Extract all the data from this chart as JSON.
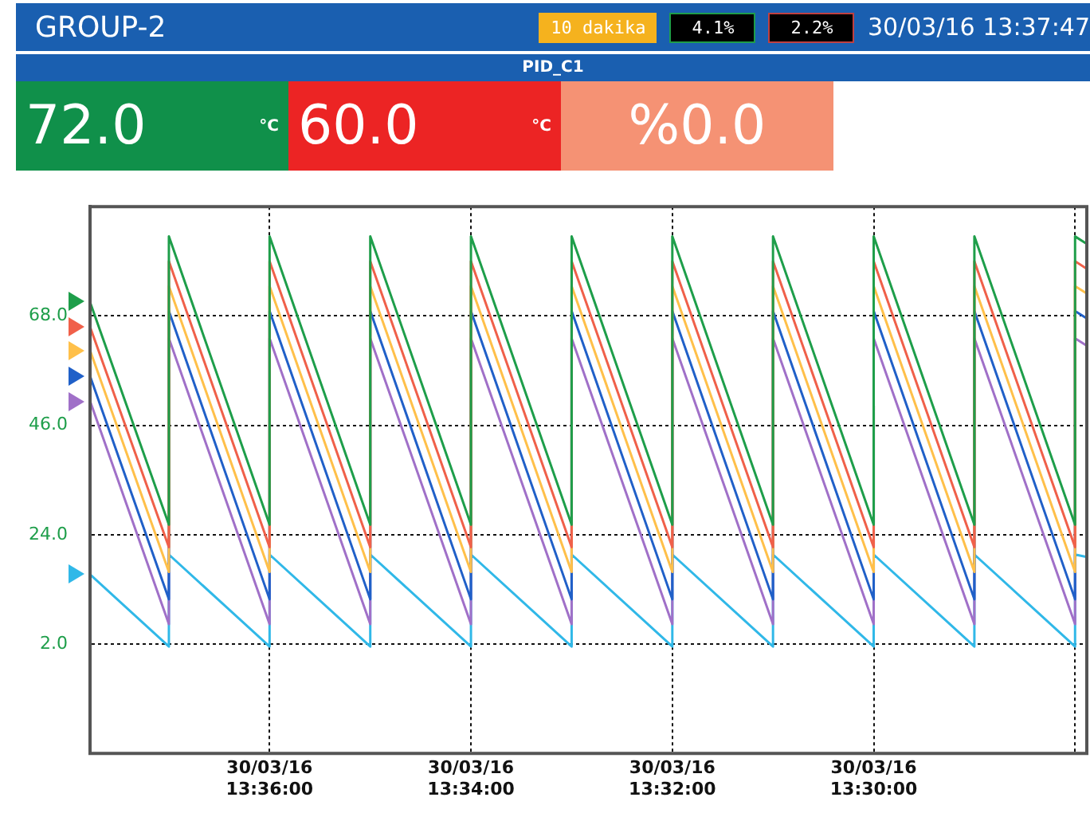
{
  "chart_data": {
    "type": "line",
    "title": "GROUP-2",
    "subtitle": "PID_C1",
    "annotations": [
      "10 dakika",
      "4.1%",
      "2.2%",
      "30/03/16 13:37:47",
      "72.0",
      "°C",
      "60.0",
      "°C",
      "%0.0"
    ],
    "x": [
      "--03-30T13:37:47",
      "--03-30T13:37",
      "--03-30T13:37",
      "--03-30T13:36",
      "--03-30T13:36",
      "--03-30T13:35",
      "--03-30T13:35",
      "--03-30T13:34",
      "--03-30T13:34",
      "--03-30T13:33",
      "--03-30T13:33",
      "--03-30T13:32",
      "--03-30T13:32",
      "--03-30T13:31",
      "--03-30T13:31",
      "--03-30T13:30",
      "--03-30T13:30",
      "--03-30T13:29",
      "--03-30T13:29",
      "--03-30T13:28",
      "--03-30T13:28",
      "--03-30T13:27:53"
    ],
    "series": [
      {
        "color": "#1e9e4a",
        "values": [
          70.8,
          26,
          84,
          26,
          84,
          26,
          84,
          26,
          84,
          26,
          84,
          26,
          84,
          26,
          84,
          26,
          84,
          26,
          84,
          26,
          84,
          82.5
        ]
      },
      {
        "color": "#f0604a",
        "values": [
          65.8,
          21.5,
          79,
          21.5,
          79,
          21.5,
          79,
          21.5,
          79,
          21.5,
          79,
          21.5,
          79,
          21.5,
          79,
          21.5,
          79,
          21.5,
          79,
          21.5,
          79,
          77.5
        ]
      },
      {
        "color": "#ffc04a",
        "values": [
          61.1,
          16.5,
          74,
          16.5,
          74,
          16.5,
          74,
          16.5,
          74,
          16.5,
          74,
          16.5,
          74,
          16.5,
          74,
          16.5,
          74,
          16.5,
          74,
          16.5,
          74,
          72.5
        ]
      },
      {
        "color": "#2060c8",
        "values": [
          55.9,
          11,
          69,
          11,
          69,
          11,
          69,
          11,
          69,
          11,
          69,
          11,
          69,
          11,
          69,
          11,
          69,
          11,
          69,
          11,
          69,
          67.5
        ]
      },
      {
        "color": "#a070c8",
        "values": [
          50.9,
          6,
          63.5,
          6,
          63.5,
          6,
          63.5,
          6,
          63.5,
          6,
          63.5,
          6,
          63.5,
          6,
          63.5,
          6,
          63.5,
          6,
          63.5,
          6,
          63.5,
          62
        ]
      },
      {
        "color": "#30b8e8",
        "values": [
          16,
          1.5,
          20,
          1.5,
          20,
          1.5,
          20,
          1.5,
          20,
          1.5,
          20,
          1.5,
          20,
          1.5,
          20,
          1.5,
          20,
          1.5,
          20,
          1.5,
          20,
          19.5
        ]
      }
    ],
    "xlim": [
      "--03-30T13:37:47",
      "--03-30T13:27:53"
    ],
    "xticks": [
      {
        "value": "--03-30T13:36",
        "label": "30/03/16\n13:36:00"
      },
      {
        "value": "--03-30T13:34",
        "label": "30/03/16\n13:34:00"
      },
      {
        "value": "--03-30T13:32",
        "label": "30/03/16\n13:32:00"
      },
      {
        "value": "--03-30T13:30",
        "label": "30/03/16\n13:30:00"
      },
      {
        "value": "--03-30T13:28",
        "label": null
      }
    ],
    "ylim": [
      -20,
      90
    ],
    "yticks": [
      {
        "value": 2,
        "label": "2.0"
      },
      {
        "value": 24,
        "label": "24.0"
      },
      {
        "value": 46,
        "label": "46.0"
      },
      {
        "value": 68,
        "label": "68.0"
      }
    ],
    "grid": true,
    "legend": false,
    "marker": "none",
    "line_style": "solid"
  }
}
